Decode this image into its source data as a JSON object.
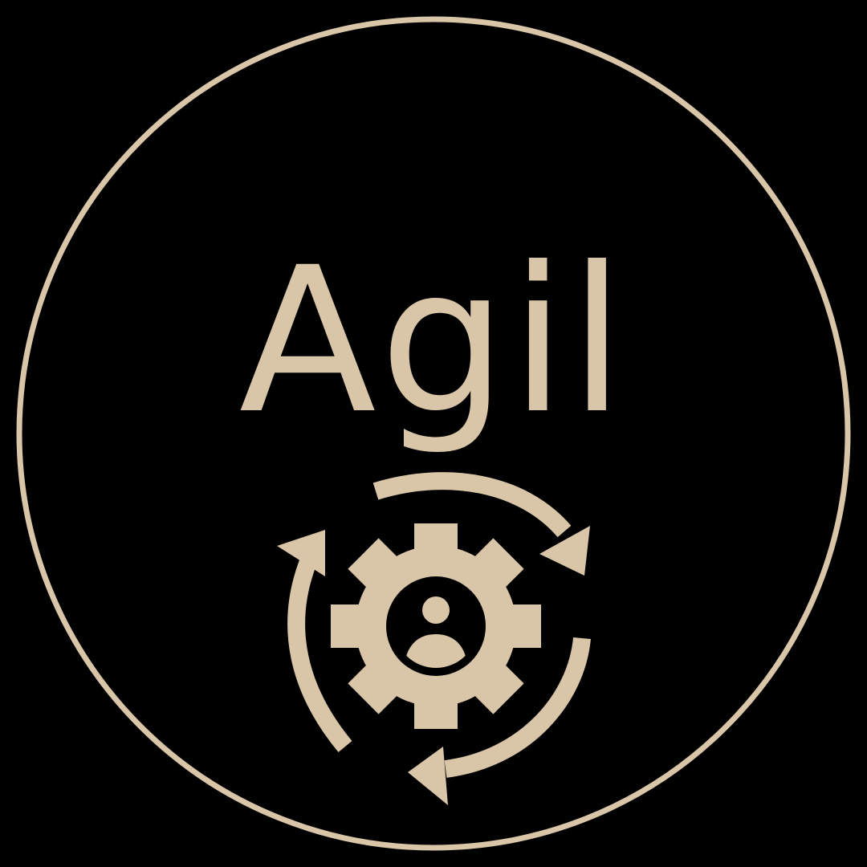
{
  "badge": {
    "title": "Agil",
    "color": "#d9c5a7",
    "background": "#000000",
    "icon": "agile-gear-cycle-icon"
  }
}
